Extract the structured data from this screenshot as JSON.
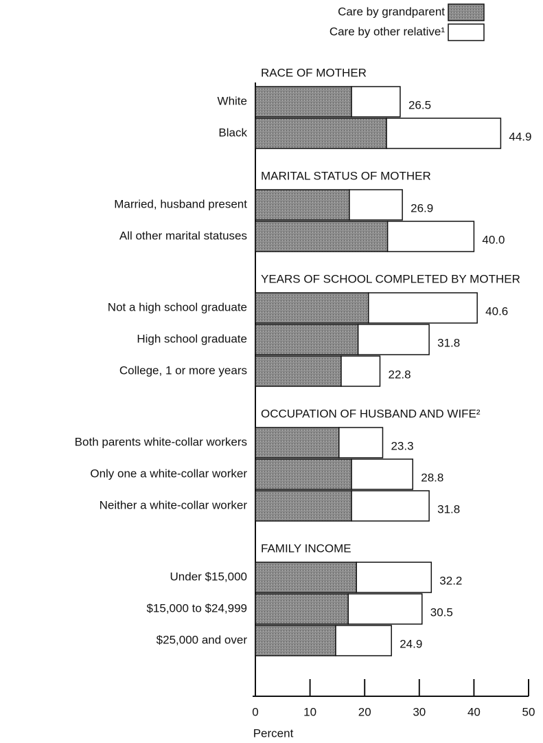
{
  "chart_data": {
    "type": "stacked-bar-horizontal",
    "x_label": "Percent",
    "xlim": [
      0,
      50
    ],
    "xticks": [
      0,
      10,
      20,
      30,
      40,
      50
    ],
    "groups": [
      {
        "title": "RACE OF MOTHER",
        "categories": [
          "White",
          "Black"
        ]
      },
      {
        "title": "MARITAL STATUS OF MOTHER",
        "categories": [
          "Married, husband present",
          "All other marital statuses"
        ]
      },
      {
        "title": "YEARS OF SCHOOL COMPLETED BY MOTHER",
        "categories": [
          "Not a high school graduate",
          "High school graduate",
          "College, 1 or more years"
        ]
      },
      {
        "title": "OCCUPATION OF HUSBAND AND WIFE²",
        "categories": [
          "Both parents white-collar workers",
          "Only one a white-collar worker",
          "Neither a white-collar worker"
        ]
      },
      {
        "title": "FAMILY INCOME",
        "categories": [
          "Under $15,000",
          "$15,000 to $24,999",
          "$25,000 and over"
        ]
      }
    ],
    "series": [
      {
        "name": "Care by grandparent",
        "color": "#8c8c8c",
        "values": [
          17.6,
          24.0,
          17.2,
          24.2,
          20.7,
          18.8,
          15.7,
          15.3,
          17.6,
          17.6,
          18.5,
          17.0,
          14.7
        ]
      },
      {
        "name": "Care by other relative¹",
        "color": "#ffffff",
        "values": [
          8.9,
          20.9,
          9.7,
          15.8,
          19.9,
          13.0,
          7.1,
          8.0,
          11.2,
          14.2,
          13.7,
          13.5,
          10.2
        ]
      }
    ],
    "totals": [
      26.5,
      44.9,
      26.9,
      40.0,
      40.6,
      31.8,
      22.8,
      23.3,
      28.8,
      31.8,
      32.2,
      30.5,
      24.9
    ],
    "total_labels": [
      "26.5",
      "44.9",
      "26.9",
      "40.0",
      "40.6",
      "31.8",
      "22.8",
      "23.3",
      "28.8",
      "31.8",
      "32.2",
      "30.5",
      "24.9"
    ]
  }
}
